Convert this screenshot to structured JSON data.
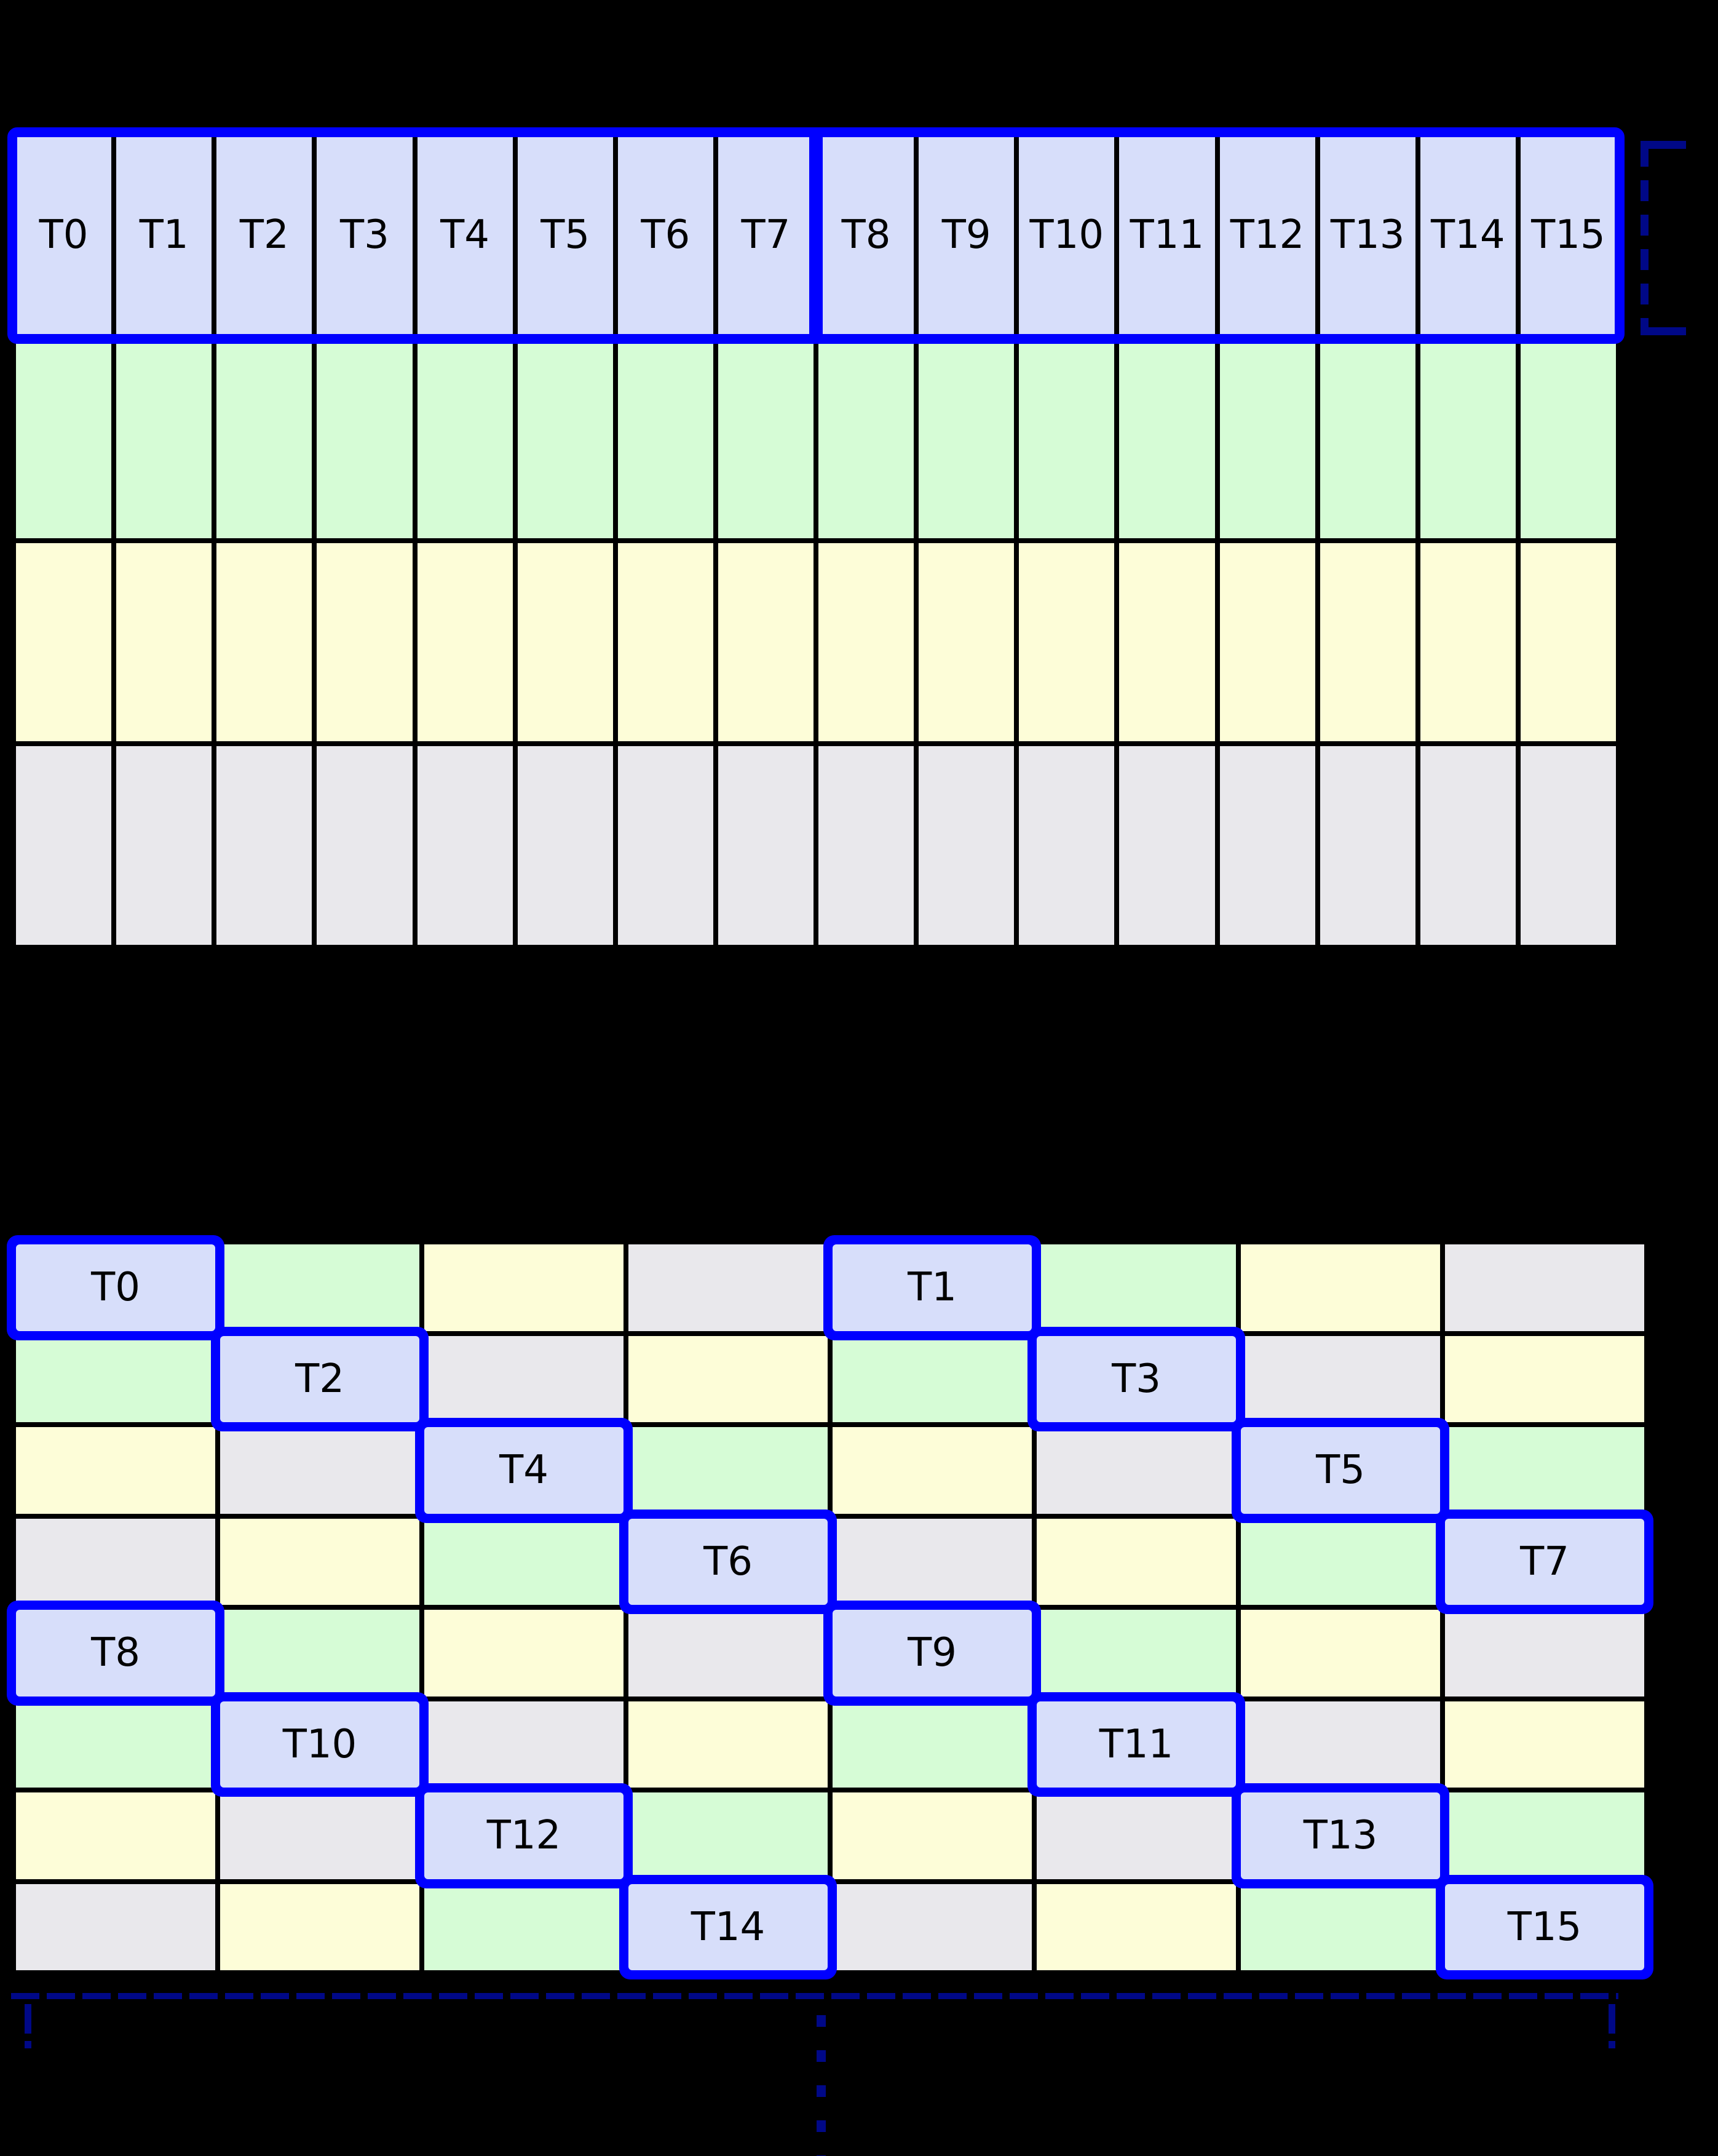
{
  "colors": {
    "background": "#000000",
    "grid_line": "#000000",
    "label_text": "#000000",
    "thread_cell": "#D7DEFA",
    "green_cell": "#D6FCD6",
    "yellow_cell": "#FDFDD8",
    "gray_cell": "#E9E8EC",
    "highlight_blue": "#0000FF",
    "dashed_navy": "#000887"
  },
  "top_grid": {
    "columns": 16,
    "thread_labels": [
      "T0",
      "T1",
      "T2",
      "T3",
      "T4",
      "T5",
      "T6",
      "T7",
      "T8",
      "T9",
      "T10",
      "T11",
      "T12",
      "T13",
      "T14",
      "T15"
    ],
    "thread_row_color": "thread",
    "warp_divider_after_column": 8,
    "memory_row_colors": [
      "green",
      "yellow",
      "gray"
    ]
  },
  "bottom_grid": {
    "columns": 8,
    "rows": 8,
    "cells": [
      [
        {
          "color": "thread",
          "label": "T0"
        },
        {
          "color": "green"
        },
        {
          "color": "yellow"
        },
        {
          "color": "gray"
        },
        {
          "color": "thread",
          "label": "T1"
        },
        {
          "color": "green"
        },
        {
          "color": "yellow"
        },
        {
          "color": "gray"
        }
      ],
      [
        {
          "color": "green"
        },
        {
          "color": "thread",
          "label": "T2"
        },
        {
          "color": "gray"
        },
        {
          "color": "yellow"
        },
        {
          "color": "green"
        },
        {
          "color": "thread",
          "label": "T3"
        },
        {
          "color": "gray"
        },
        {
          "color": "yellow"
        }
      ],
      [
        {
          "color": "yellow"
        },
        {
          "color": "gray"
        },
        {
          "color": "thread",
          "label": "T4"
        },
        {
          "color": "green"
        },
        {
          "color": "yellow"
        },
        {
          "color": "gray"
        },
        {
          "color": "thread",
          "label": "T5"
        },
        {
          "color": "green"
        }
      ],
      [
        {
          "color": "gray"
        },
        {
          "color": "yellow"
        },
        {
          "color": "green"
        },
        {
          "color": "thread",
          "label": "T6"
        },
        {
          "color": "gray"
        },
        {
          "color": "yellow"
        },
        {
          "color": "green"
        },
        {
          "color": "thread",
          "label": "T7"
        }
      ],
      [
        {
          "color": "thread",
          "label": "T8"
        },
        {
          "color": "green"
        },
        {
          "color": "yellow"
        },
        {
          "color": "gray"
        },
        {
          "color": "thread",
          "label": "T9"
        },
        {
          "color": "green"
        },
        {
          "color": "yellow"
        },
        {
          "color": "gray"
        }
      ],
      [
        {
          "color": "green"
        },
        {
          "color": "thread",
          "label": "T10"
        },
        {
          "color": "gray"
        },
        {
          "color": "yellow"
        },
        {
          "color": "green"
        },
        {
          "color": "thread",
          "label": "T11"
        },
        {
          "color": "gray"
        },
        {
          "color": "yellow"
        }
      ],
      [
        {
          "color": "yellow"
        },
        {
          "color": "gray"
        },
        {
          "color": "thread",
          "label": "T12"
        },
        {
          "color": "green"
        },
        {
          "color": "yellow"
        },
        {
          "color": "gray"
        },
        {
          "color": "thread",
          "label": "T13"
        },
        {
          "color": "green"
        }
      ],
      [
        {
          "color": "gray"
        },
        {
          "color": "yellow"
        },
        {
          "color": "green"
        },
        {
          "color": "thread",
          "label": "T14"
        },
        {
          "color": "gray"
        },
        {
          "color": "yellow"
        },
        {
          "color": "green"
        },
        {
          "color": "thread",
          "label": "T15"
        }
      ]
    ]
  }
}
